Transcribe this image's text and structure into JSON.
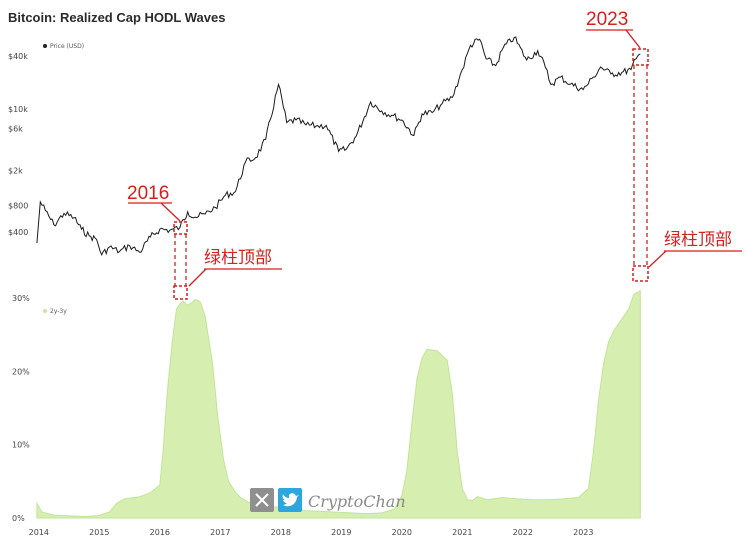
{
  "title": "Bitcoin: Realized Cap HODL Waves",
  "chart_data": [
    {
      "type": "line",
      "yscale": "log",
      "legend": "Price (USD)",
      "legend_color": "#222222",
      "y_ticks": [
        "$400",
        "$800",
        "$2k",
        "$6k",
        "$10k",
        "$40k"
      ],
      "x": [
        "2013-12-20",
        "2014-01-10",
        "2014-02-10",
        "2014-04-01",
        "2014-06-01",
        "2014-08-01",
        "2014-09-15",
        "2014-11-01",
        "2014-12-15",
        "2015-01-15",
        "2015-03-01",
        "2015-05-01",
        "2015-07-01",
        "2015-09-01",
        "2015-11-05",
        "2016-01-01",
        "2016-03-01",
        "2016-05-01",
        "2016-06-17",
        "2016-08-01",
        "2016-10-01",
        "2016-12-01",
        "2017-02-01",
        "2017-04-01",
        "2017-06-01",
        "2017-08-01",
        "2017-10-01",
        "2017-12-17",
        "2018-02-06",
        "2018-04-01",
        "2018-06-01",
        "2018-08-01",
        "2018-10-01",
        "2018-12-15",
        "2019-02-01",
        "2019-04-01",
        "2019-06-26",
        "2019-09-01",
        "2019-11-01",
        "2020-01-01",
        "2020-03-13",
        "2020-05-01",
        "2020-07-01",
        "2020-09-01",
        "2020-11-01",
        "2020-12-31",
        "2021-02-20",
        "2021-04-14",
        "2021-05-23",
        "2021-07-20",
        "2021-09-05",
        "2021-11-10",
        "2022-01-24",
        "2022-03-30",
        "2022-05-15",
        "2022-06-18",
        "2022-08-15",
        "2022-10-15",
        "2022-12-30",
        "2023-03-01",
        "2023-04-14",
        "2023-06-15",
        "2023-08-20",
        "2023-10-15",
        "2023-11-15",
        "2023-12-10"
      ],
      "values": [
        300,
        880,
        700,
        480,
        650,
        580,
        430,
        360,
        330,
        220,
        270,
        240,
        280,
        235,
        350,
        430,
        420,
        450,
        680,
        590,
        640,
        760,
        1050,
        1150,
        2500,
        2800,
        4500,
        19000,
        7000,
        7500,
        6600,
        6400,
        6500,
        3300,
        3500,
        5000,
        12000,
        9500,
        8500,
        7500,
        5000,
        8800,
        9100,
        11500,
        13500,
        28000,
        53000,
        62000,
        37000,
        31000,
        50000,
        65000,
        36000,
        46000,
        30000,
        19000,
        23000,
        19200,
        16600,
        23000,
        30000,
        25000,
        26000,
        28000,
        37000,
        42000
      ]
    },
    {
      "type": "area",
      "legend": "2y-3y",
      "legend_color": "#c8e6a0",
      "y_ticks": [
        "0%",
        "10%",
        "20%",
        "30%"
      ],
      "ylim": [
        0,
        32
      ],
      "x": [
        "2013-12-20",
        "2014-01-20",
        "2014-04-01",
        "2014-10-01",
        "2014-12-20",
        "2015-03-01",
        "2015-04-15",
        "2015-06-01",
        "2015-09-01",
        "2015-11-01",
        "2016-01-01",
        "2016-01-20",
        "2016-02-15",
        "2016-03-15",
        "2016-04-10",
        "2016-05-01",
        "2016-05-20",
        "2016-06-15",
        "2016-07-15",
        "2016-08-01",
        "2016-09-01",
        "2016-10-01",
        "2016-11-15",
        "2016-12-15",
        "2017-01-20",
        "2017-02-20",
        "2017-04-01",
        "2017-05-01",
        "2017-07-01",
        "2017-09-01",
        "2017-12-01",
        "2018-03-01",
        "2018-06-01",
        "2018-09-01",
        "2018-12-01",
        "2019-03-01",
        "2019-06-01",
        "2019-09-01",
        "2019-11-15",
        "2020-01-01",
        "2020-02-01",
        "2020-03-01",
        "2020-04-01",
        "2020-05-01",
        "2020-06-01",
        "2020-08-01",
        "2020-10-01",
        "2020-11-01",
        "2020-12-01",
        "2021-01-01",
        "2021-02-01",
        "2021-03-01",
        "2021-04-01",
        "2021-06-01",
        "2021-09-01",
        "2021-12-01",
        "2022-03-01",
        "2022-06-01",
        "2022-09-01",
        "2022-12-01",
        "2023-02-01",
        "2023-03-01",
        "2023-04-01",
        "2023-05-01",
        "2023-06-01",
        "2023-07-01",
        "2023-08-01",
        "2023-09-01",
        "2023-10-01",
        "2023-11-01",
        "2023-12-10"
      ],
      "values": [
        2.0,
        0.8,
        0.4,
        0.2,
        0.3,
        0.8,
        2.0,
        2.6,
        2.9,
        3.4,
        4.5,
        9.0,
        17.0,
        24.0,
        28.5,
        29.2,
        29.6,
        29.0,
        29.4,
        29.8,
        29.5,
        27.5,
        21.0,
        14.0,
        8.0,
        5.0,
        3.5,
        2.8,
        2.0,
        1.6,
        1.5,
        1.4,
        1.0,
        0.9,
        0.8,
        0.7,
        0.6,
        0.7,
        1.2,
        3.0,
        6.5,
        13.0,
        19.0,
        21.8,
        23.0,
        22.8,
        21.5,
        17.0,
        9.0,
        4.0,
        2.5,
        2.4,
        2.9,
        2.5,
        2.8,
        2.6,
        2.5,
        2.5,
        2.6,
        2.8,
        4.0,
        9.0,
        16.0,
        21.0,
        24.0,
        25.5,
        26.5,
        27.5,
        28.5,
        30.5,
        31.0
      ]
    }
  ],
  "x_ticks": [
    "2014",
    "2015",
    "2016",
    "2017",
    "2018",
    "2019",
    "2020",
    "2021",
    "2022",
    "2023"
  ],
  "annotations": {
    "label_2016": "2016",
    "label_2023": "2023",
    "label_top_left": "绿柱顶部",
    "label_top_right": "绿柱顶部"
  },
  "watermark": {
    "text": "CryptoChan",
    "x_icon": "x-logo-icon",
    "bird_icon": "twitter-bird-icon"
  },
  "colors": {
    "price_line": "#1a1a1a",
    "area_fill": "#d6efb0",
    "area_stroke": "#c2e596",
    "annotation": "#d61f1f"
  }
}
